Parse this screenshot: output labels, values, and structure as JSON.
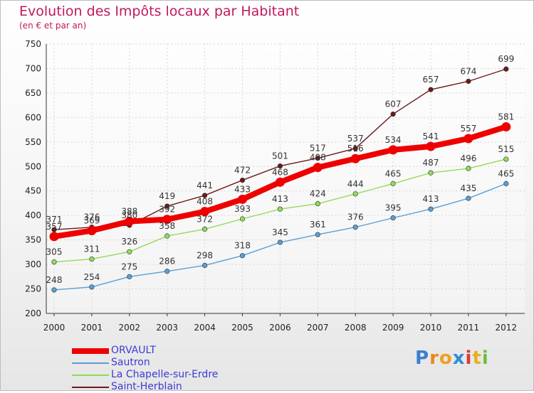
{
  "chart_data": {
    "type": "line",
    "title": "Evolution des Impôts locaux par Habitant",
    "subtitle": "(en € et par an)",
    "x": [
      "2000",
      "2001",
      "2002",
      "2003",
      "2004",
      "2005",
      "2006",
      "2007",
      "2008",
      "2009",
      "2010",
      "2011",
      "2012"
    ],
    "ylim": [
      200,
      750
    ],
    "yticks": [
      200,
      250,
      300,
      350,
      400,
      450,
      500,
      550,
      600,
      650,
      700,
      750
    ],
    "grid": true,
    "legend_position": "bottom-left",
    "series": [
      {
        "name": "ORVAULT",
        "color": "#ee0000",
        "values": [
          357,
          369,
          388,
          392,
          408,
          433,
          468,
          498,
          516,
          534,
          541,
          557,
          581
        ]
      },
      {
        "name": "Sautron",
        "color": "#5a9fd4",
        "values": [
          248,
          254,
          275,
          286,
          298,
          318,
          345,
          361,
          376,
          395,
          413,
          435,
          465
        ]
      },
      {
        "name": "La Chapelle-sur-Erdre",
        "color": "#8fdc5a",
        "values": [
          305,
          311,
          326,
          358,
          372,
          393,
          413,
          424,
          444,
          465,
          487,
          496,
          515
        ]
      },
      {
        "name": "Saint-Herblain",
        "color": "#6b1a1a",
        "values": [
          371,
          376,
          380,
          419,
          441,
          472,
          501,
          517,
          537,
          607,
          657,
          674,
          699
        ]
      }
    ]
  },
  "labels": {
    "ORVAULT": [
      "357",
      "369",
      "388",
      "392",
      "408",
      "433",
      "468",
      "498",
      "516",
      "534",
      "541",
      "557",
      "581"
    ],
    "Sautron": [
      "248",
      "254",
      "275",
      "286",
      "298",
      "318",
      "345",
      "361",
      "376",
      "395",
      "413",
      "435",
      "465"
    ],
    "La Chapelle-sur-Erdre": [
      "305",
      "311",
      "326",
      "358",
      "372",
      "393",
      "413",
      "424",
      "444",
      "465",
      "487",
      "496",
      "515"
    ],
    "Saint-Herblain": [
      "371",
      "376",
      "380",
      "419",
      "441",
      "472",
      "501",
      "517",
      "537",
      "607",
      "657",
      "674",
      "699"
    ]
  },
  "logo": {
    "text": "Proxiti"
  }
}
